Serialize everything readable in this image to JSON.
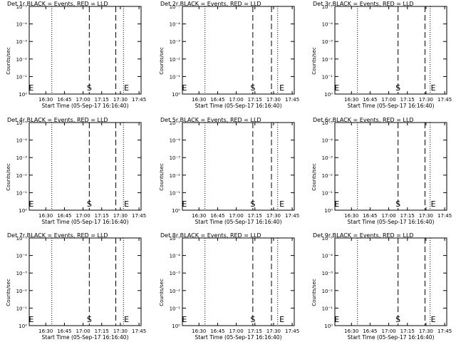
{
  "chart_data": [
    {
      "type": "line",
      "title": "Det 1r BLACK = Events, RED = LLD",
      "xlabel": "Start Time (05-Sep-17 16:16:40)",
      "ylabel": "Counts/sec",
      "yscale": "log",
      "ylim": [
        1,
        10000
      ],
      "xlim": [
        0,
        5400
      ],
      "x_tick_labels": [
        "16:30",
        "16:45",
        "17:00",
        "17:15",
        "17:30",
        "17:45"
      ],
      "x_tick_values": [
        800,
        1700,
        2600,
        3500,
        4400,
        5300
      ],
      "y_tick_labels": [
        "10⁰",
        "10⁻¹",
        "10⁻²",
        "10⁻³",
        "10⁻⁴",
        "10⁻⁵"
      ],
      "dotted_lines": [
        1090,
        4550
      ],
      "dashed_lines": [
        2900,
        4180
      ],
      "markers": [
        {
          "label": "E",
          "x": 100
        },
        {
          "label": "S",
          "x": 2900
        },
        {
          "label": "E",
          "x": 4700
        }
      ],
      "series": []
    },
    {
      "type": "line",
      "title": "Det 2r BLACK = Events, RED = LLD",
      "xlabel": "Start Time (05-Sep-17 16:16:40)",
      "ylabel": "Counts/sec",
      "yscale": "log",
      "ylim": [
        1,
        10000
      ],
      "xlim": [
        0,
        5400
      ],
      "x_tick_labels": [
        "16:30",
        "16:45",
        "17:00",
        "17:15",
        "17:30",
        "17:45"
      ],
      "x_tick_values": [
        800,
        1700,
        2600,
        3500,
        4400,
        5300
      ],
      "y_tick_labels": [
        "10⁰",
        "10⁻¹",
        "10⁻²",
        "10⁻³",
        "10⁻⁴",
        "10⁻⁵"
      ],
      "dotted_lines": [
        1090,
        4600
      ],
      "dashed_lines": [
        3400,
        4300
      ],
      "markers": [
        {
          "label": "E",
          "x": 100
        },
        {
          "label": "S",
          "x": 3400
        },
        {
          "label": "E",
          "x": 4800
        }
      ],
      "series": []
    },
    {
      "type": "line",
      "title": "Det 3r BLACK = Events, RED = LLD",
      "xlabel": "Start Time (05-Sep-17 16:16:40)",
      "ylabel": "Counts/sec",
      "yscale": "log",
      "ylim": [
        1,
        10000
      ],
      "xlim": [
        0,
        5400
      ],
      "x_tick_labels": [
        "16:30",
        "16:45",
        "17:00",
        "17:15",
        "17:30",
        "17:45"
      ],
      "x_tick_values": [
        800,
        1700,
        2600,
        3500,
        4400,
        5300
      ],
      "y_tick_labels": [
        "10⁰",
        "10⁻¹",
        "10⁻²",
        "10⁻³",
        "10⁻⁴",
        "10⁻⁵"
      ],
      "dotted_lines": [
        1090,
        4600
      ],
      "dashed_lines": [
        3050,
        4350
      ],
      "markers": [
        {
          "label": "E",
          "x": 100
        },
        {
          "label": "S",
          "x": 3050
        },
        {
          "label": "E",
          "x": 4750
        }
      ],
      "series": []
    },
    {
      "type": "line",
      "title": "Det 4r BLACK = Events, RED = LLD",
      "xlabel": "Start Time (05-Sep-17 16:16:40)",
      "ylabel": "Counts/sec",
      "yscale": "log",
      "ylim": [
        1,
        10000
      ],
      "xlim": [
        0,
        5400
      ],
      "x_tick_labels": [
        "16:30",
        "16:45",
        "17:00",
        "17:15",
        "17:30",
        "17:45"
      ],
      "x_tick_values": [
        800,
        1700,
        2600,
        3500,
        4400,
        5300
      ],
      "y_tick_labels": [
        "10⁰",
        "10⁻¹",
        "10⁻²",
        "10⁻³",
        "10⁻⁴",
        "10⁻⁵"
      ],
      "dotted_lines": [
        1090,
        4550
      ],
      "dashed_lines": [
        2900,
        4180
      ],
      "markers": [
        {
          "label": "E",
          "x": 100
        },
        {
          "label": "S",
          "x": 2900
        },
        {
          "label": "E",
          "x": 4700
        }
      ],
      "series": []
    },
    {
      "type": "line",
      "title": "Det 5r BLACK = Events, RED = LLD",
      "xlabel": "Start Time (05-Sep-17 16:16:40)",
      "ylabel": "Counts/sec",
      "yscale": "log",
      "ylim": [
        1,
        10000
      ],
      "xlim": [
        0,
        5400
      ],
      "x_tick_labels": [
        "16:30",
        "16:45",
        "17:00",
        "17:15",
        "17:30",
        "17:45"
      ],
      "x_tick_values": [
        800,
        1700,
        2600,
        3500,
        4400,
        5300
      ],
      "y_tick_labels": [
        "10⁰",
        "10⁻¹",
        "10⁻²",
        "10⁻³",
        "10⁻⁴",
        "10⁻⁵"
      ],
      "dotted_lines": [
        1090,
        4600
      ],
      "dashed_lines": [
        3400,
        4300
      ],
      "markers": [
        {
          "label": "E",
          "x": 100
        },
        {
          "label": "S",
          "x": 3400
        },
        {
          "label": "E",
          "x": 4800
        }
      ],
      "series": []
    },
    {
      "type": "line",
      "title": "Det 6r BLACK = Events, RED = LLD",
      "xlabel": "Start Time (05-Sep-17 16:16:40)",
      "ylabel": "Counts/sec",
      "yscale": "log",
      "ylim": [
        1,
        10000
      ],
      "xlim": [
        0,
        5400
      ],
      "x_tick_labels": [
        "16:30",
        "16:45",
        "17:00",
        "17:15",
        "17:30",
        "17:45"
      ],
      "x_tick_values": [
        800,
        1700,
        2600,
        3500,
        4400,
        5300
      ],
      "y_tick_labels": [
        "10⁰",
        "10⁻¹",
        "10⁻²",
        "10⁻³",
        "10⁻⁴",
        "10⁻⁵"
      ],
      "dotted_lines": [
        1090,
        4600
      ],
      "dashed_lines": [
        3050,
        4350
      ],
      "markers": [
        {
          "label": "E",
          "x": 100
        },
        {
          "label": "S",
          "x": 3050
        },
        {
          "label": "E",
          "x": 4750
        }
      ],
      "series": []
    },
    {
      "type": "line",
      "title": "Det 7r BLACK = Events, RED = LLD",
      "xlabel": "Start Time (05-Sep-17 16:16:40)",
      "ylabel": "Counts/sec",
      "yscale": "log",
      "ylim": [
        1,
        10000
      ],
      "xlim": [
        0,
        5400
      ],
      "x_tick_labels": [
        "16:30",
        "16:45",
        "17:00",
        "17:15",
        "17:30",
        "17:45"
      ],
      "x_tick_values": [
        800,
        1700,
        2600,
        3500,
        4400,
        5300
      ],
      "y_tick_labels": [
        "10⁰",
        "10⁻¹",
        "10⁻²",
        "10⁻³",
        "10⁻⁴",
        "10⁻⁵"
      ],
      "dotted_lines": [
        1090,
        4550
      ],
      "dashed_lines": [
        2900,
        4180
      ],
      "markers": [
        {
          "label": "E",
          "x": 100
        },
        {
          "label": "S",
          "x": 2900
        },
        {
          "label": "E",
          "x": 4700
        }
      ],
      "series": []
    },
    {
      "type": "line",
      "title": "Det 8r BLACK = Events, RED = LLD",
      "xlabel": "Start Time (05-Sep-17 16:16:40)",
      "ylabel": "Counts/sec",
      "yscale": "log",
      "ylim": [
        1,
        10000
      ],
      "xlim": [
        0,
        5400
      ],
      "x_tick_labels": [
        "16:30",
        "16:45",
        "17:00",
        "17:15",
        "17:30",
        "17:45"
      ],
      "x_tick_values": [
        800,
        1700,
        2600,
        3500,
        4400,
        5300
      ],
      "y_tick_labels": [
        "10⁰",
        "10⁻¹",
        "10⁻²",
        "10⁻³",
        "10⁻⁴",
        "10⁻⁵"
      ],
      "dotted_lines": [
        1090,
        4600
      ],
      "dashed_lines": [
        3400,
        4300
      ],
      "markers": [
        {
          "label": "E",
          "x": 100
        },
        {
          "label": "S",
          "x": 3400
        },
        {
          "label": "E",
          "x": 4800
        }
      ],
      "series": []
    },
    {
      "type": "line",
      "title": "Det 9r BLACK = Events, RED = LLD",
      "xlabel": "Start Time (05-Sep-17 16:16:40)",
      "ylabel": "Counts/sec",
      "yscale": "log",
      "ylim": [
        1,
        10000
      ],
      "xlim": [
        0,
        5400
      ],
      "x_tick_labels": [
        "16:30",
        "16:45",
        "17:00",
        "17:15",
        "17:30",
        "17:45"
      ],
      "x_tick_values": [
        800,
        1700,
        2600,
        3500,
        4400,
        5300
      ],
      "y_tick_labels": [
        "10⁰",
        "10⁻¹",
        "10⁻²",
        "10⁻³",
        "10⁻⁴",
        "10⁻⁵"
      ],
      "dotted_lines": [
        1090,
        4600
      ],
      "dashed_lines": [
        3050,
        4350
      ],
      "markers": [
        {
          "label": "E",
          "x": 100
        },
        {
          "label": "S",
          "x": 3050
        },
        {
          "label": "E",
          "x": 4750
        }
      ],
      "series": []
    }
  ]
}
